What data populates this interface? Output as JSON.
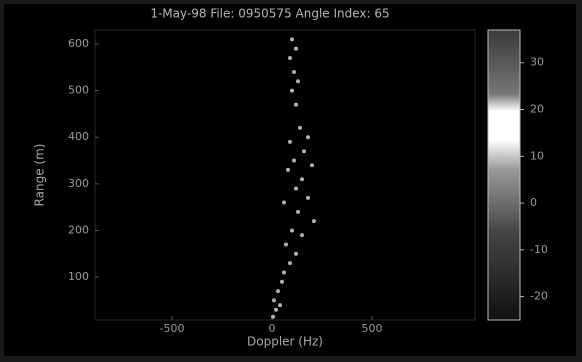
{
  "chart_data": {
    "type": "scatter",
    "title": "1-May-98 File: 0950575 Angle Index: 65",
    "x_label": "Doppler (Hz)",
    "y_label": "Range (m)",
    "color": "#d0d0d0",
    "x": [
      100,
      120,
      90,
      110,
      130,
      100,
      120,
      140,
      180,
      90,
      160,
      110,
      200,
      80,
      150,
      120,
      180,
      60,
      130,
      210,
      100,
      150,
      70,
      120,
      90,
      60,
      50,
      30,
      10,
      20,
      5,
      40
    ],
    "y": [
      610,
      590,
      570,
      540,
      520,
      500,
      470,
      420,
      400,
      390,
      370,
      350,
      340,
      330,
      310,
      290,
      270,
      260,
      240,
      220,
      200,
      190,
      170,
      150,
      130,
      110,
      90,
      70,
      50,
      30,
      15,
      40
    ],
    "xlim": [
      -885,
      1015
    ],
    "ylim": [
      8,
      630
    ],
    "xticks": [
      -500,
      0,
      500
    ],
    "yticks": [
      100,
      200,
      300,
      400,
      500,
      600
    ],
    "colorbar_lim": [
      -25,
      37
    ],
    "colorbar_ticks": [
      -20,
      -10,
      0,
      10,
      20,
      30
    ]
  }
}
